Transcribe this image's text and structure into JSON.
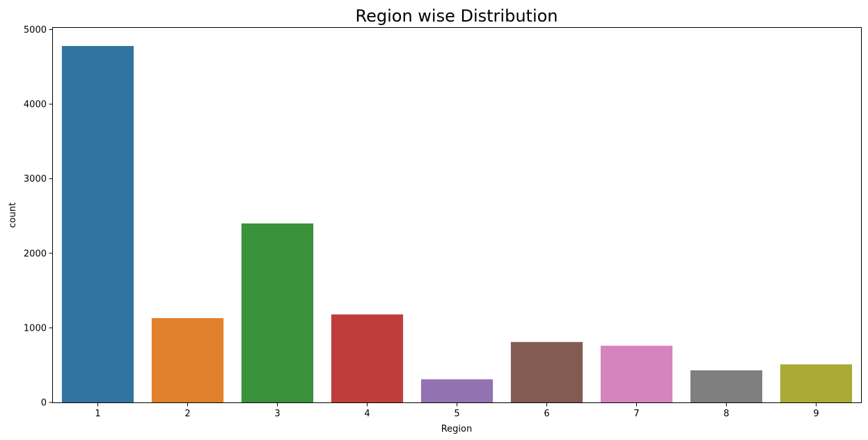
{
  "chart_data": {
    "type": "bar",
    "title": "Region wise Distribution",
    "xlabel": "Region",
    "ylabel": "count",
    "categories": [
      "1",
      "2",
      "3",
      "4",
      "5",
      "6",
      "7",
      "8",
      "9"
    ],
    "values": [
      4780,
      1130,
      2400,
      1180,
      310,
      810,
      760,
      430,
      510
    ],
    "colors": [
      "#3274a1",
      "#e1812c",
      "#3a923a",
      "#c03d3e",
      "#9372b2",
      "#845b53",
      "#d684bd",
      "#7f7f7f",
      "#a9aa35"
    ],
    "ylim": [
      0,
      5000
    ],
    "yticks": [
      0,
      1000,
      2000,
      3000,
      4000,
      5000
    ],
    "grid": false,
    "legend": "none"
  }
}
